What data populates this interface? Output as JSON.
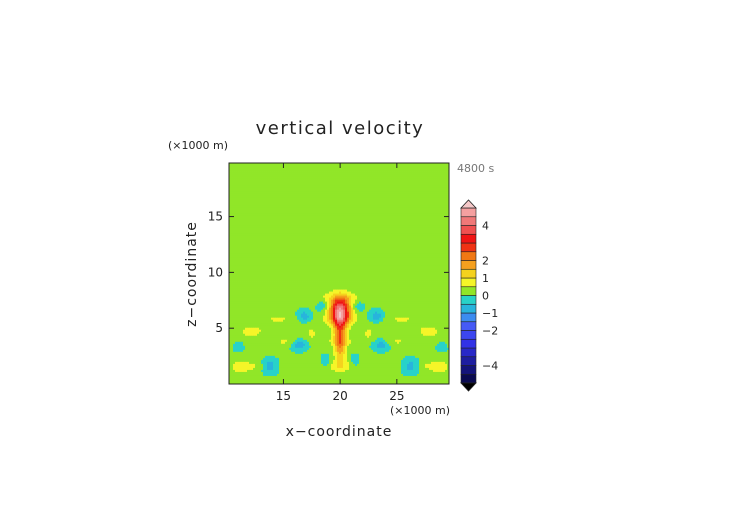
{
  "chart_data": {
    "type": "heatmap",
    "title": "vertical velocity",
    "time_label": "4800 s",
    "xlabel": "x−coordinate",
    "ylabel": "z−coordinate",
    "x_unit": "(×1000 m)",
    "y_unit": "(×1000 m)",
    "xlim": [
      10.2,
      29.6
    ],
    "ylim": [
      0,
      19.8
    ],
    "x_ticks": [
      15,
      20,
      25
    ],
    "y_ticks": [
      5,
      10,
      15
    ],
    "x_tick_labels": [
      "15",
      "20",
      "25"
    ],
    "y_tick_labels": [
      "5",
      "10",
      "15"
    ],
    "colorbar": {
      "levels": [
        -5,
        -4.5,
        -4,
        -3.5,
        -3,
        -2.5,
        -2,
        -1.5,
        -1,
        -0.5,
        0,
        0.5,
        1,
        1.5,
        2,
        2.5,
        3,
        3.5,
        4,
        4.5,
        5
      ],
      "tick_values": [
        4,
        2,
        1,
        0,
        -1,
        -2,
        -4
      ],
      "tick_labels": [
        "4",
        "2",
        "1",
        "0",
        "−1",
        "−2",
        "−4"
      ],
      "colors": [
        "#0a0a50",
        "#14147a",
        "#1e1ea0",
        "#2828c8",
        "#3232e6",
        "#3c46f0",
        "#465af5",
        "#3c8cf0",
        "#28b4dc",
        "#28d2c8",
        "#91e628",
        "#f5f528",
        "#f5d21e",
        "#f5a01e",
        "#f07814",
        "#f03214",
        "#f01414",
        "#f05050",
        "#f07878",
        "#f5a0a0"
      ],
      "under_color": "#000000",
      "over_color": "#f5c8c8"
    },
    "features": [
      {
        "kind": "background",
        "value": 0.1
      },
      {
        "kind": "upper-band",
        "value": 0.4,
        "z_from": 14.2,
        "z_to": 19.8
      },
      {
        "kind": "updraft-core",
        "x": 20,
        "z": 6.5,
        "max_value": 4.2
      },
      {
        "kind": "wave-band",
        "z": 5.8,
        "value": 0.6
      },
      {
        "kind": "downdraft",
        "x": 13.8,
        "z": 1.6,
        "value": -1.3
      },
      {
        "kind": "downdraft",
        "x": 26.2,
        "z": 1.6,
        "value": -1.3
      },
      {
        "kind": "downdraft",
        "x": 16.4,
        "z": 3.5,
        "value": -1.0
      },
      {
        "kind": "downdraft",
        "x": 23.6,
        "z": 3.5,
        "value": -1.0
      },
      {
        "kind": "downdraft",
        "x": 16.8,
        "z": 6.1,
        "value": -0.9
      },
      {
        "kind": "downdraft",
        "x": 23.2,
        "z": 6.1,
        "value": -0.9
      }
    ]
  }
}
